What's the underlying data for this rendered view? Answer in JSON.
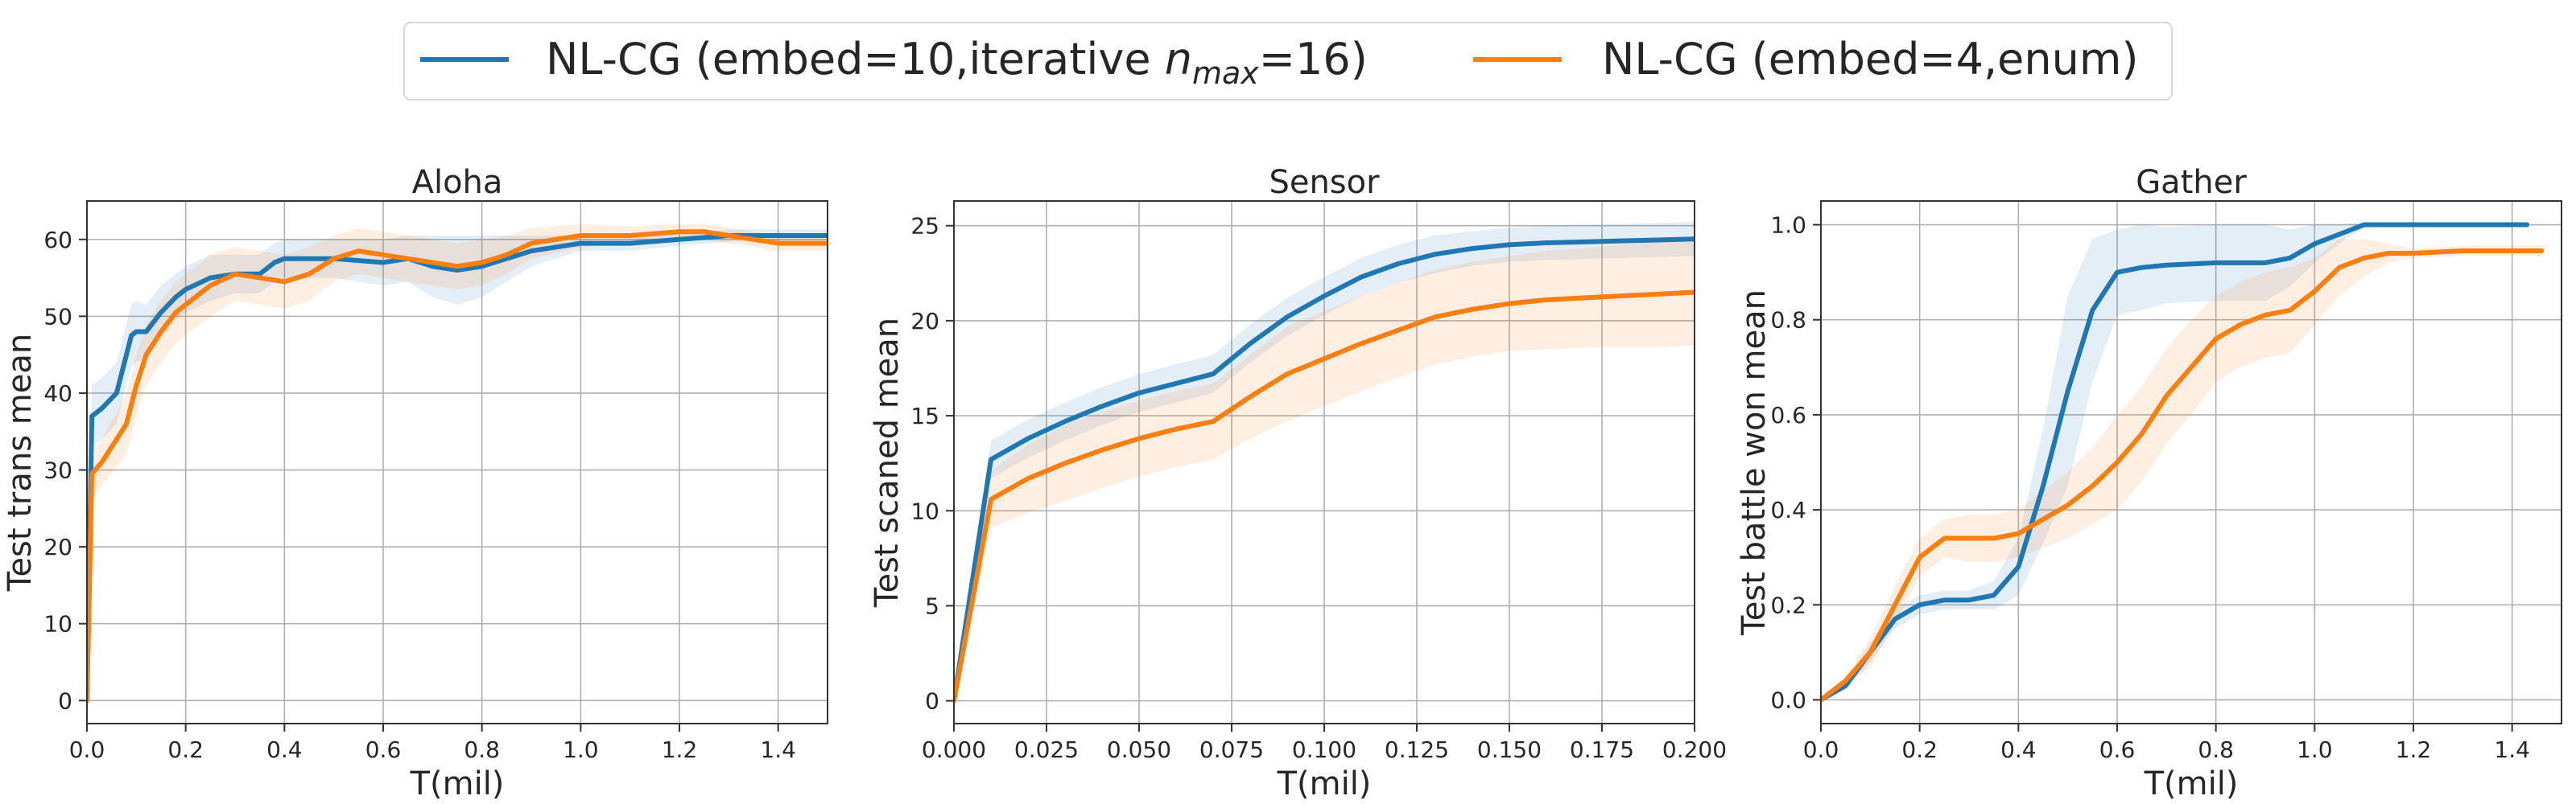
{
  "legend": {
    "position": "top-center",
    "entries": [
      {
        "label_prefix": "NL-CG (embed=10,iterative ",
        "label_sub_base": "n",
        "label_sub": "max",
        "label_suffix": "=16)",
        "color": "#1f77b4"
      },
      {
        "label_prefix": "NL-CG (embed=4,enum)",
        "label_sub_base": "",
        "label_sub": "",
        "label_suffix": "",
        "color": "#ff7f0e"
      }
    ]
  },
  "chart_data": [
    {
      "type": "line",
      "title": "Aloha",
      "xlabel": "T(mil)",
      "ylabel": "Test trans mean",
      "xlim": [
        0,
        1.5
      ],
      "ylim": [
        -3,
        65
      ],
      "xticks": [
        0,
        0.2,
        0.4,
        0.6,
        0.8,
        1.0,
        1.2,
        1.4
      ],
      "xtick_labels": [
        "0.0",
        "0.2",
        "0.4",
        "0.6",
        "0.8",
        "1.0",
        "1.2",
        "1.4"
      ],
      "yticks": [
        0,
        10,
        20,
        30,
        40,
        50,
        60
      ],
      "ytick_labels": [
        "0",
        "10",
        "20",
        "30",
        "40",
        "50",
        "60"
      ],
      "grid": true,
      "series": [
        {
          "color": "#1f77b4",
          "x": [
            0,
            0.01,
            0.03,
            0.06,
            0.08,
            0.09,
            0.1,
            0.12,
            0.15,
            0.18,
            0.2,
            0.25,
            0.3,
            0.35,
            0.38,
            0.4,
            0.45,
            0.5,
            0.6,
            0.65,
            0.7,
            0.75,
            0.8,
            0.85,
            0.9,
            1.0,
            1.1,
            1.2,
            1.3,
            1.4,
            1.5
          ],
          "y": [
            0,
            37,
            38,
            40,
            45,
            47.5,
            48,
            48,
            50.5,
            52.5,
            53.5,
            55,
            55.5,
            55.5,
            57,
            57.5,
            57.5,
            57.5,
            57,
            57.5,
            56.5,
            56,
            56.5,
            57.5,
            58.5,
            59.5,
            59.5,
            60,
            60.5,
            60.5,
            60.5
          ],
          "band_width": [
            0,
            4,
            4,
            4,
            4,
            4,
            4,
            3.5,
            3.5,
            3,
            3,
            3,
            2.5,
            2.5,
            2.5,
            2.5,
            2.5,
            2.5,
            3,
            3,
            4,
            4.5,
            4,
            3,
            2,
            1,
            1,
            0.8,
            0.8,
            0.8,
            0.8
          ]
        },
        {
          "color": "#ff7f0e",
          "x": [
            0,
            0.01,
            0.03,
            0.06,
            0.08,
            0.1,
            0.12,
            0.15,
            0.18,
            0.2,
            0.25,
            0.3,
            0.35,
            0.4,
            0.45,
            0.5,
            0.55,
            0.6,
            0.65,
            0.7,
            0.75,
            0.8,
            0.85,
            0.9,
            1.0,
            1.1,
            1.2,
            1.25,
            1.3,
            1.35,
            1.4,
            1.5
          ],
          "y": [
            0,
            29.5,
            31,
            34,
            36,
            41,
            45,
            48,
            50.5,
            51.5,
            54,
            55.5,
            55,
            54.5,
            55.5,
            57.5,
            58.5,
            58,
            57.5,
            57,
            56.5,
            57,
            58,
            59.5,
            60.5,
            60.5,
            61,
            61,
            60.5,
            60,
            59.5,
            59.5
          ],
          "band_width": [
            0,
            3,
            3,
            3.5,
            4,
            4,
            4,
            4,
            4,
            4,
            4,
            3.5,
            3.5,
            3.5,
            3.5,
            3,
            3,
            3,
            3,
            3,
            3,
            3,
            2.5,
            2,
            1.5,
            1.2,
            1,
            1,
            1,
            1,
            1,
            1
          ]
        }
      ]
    },
    {
      "type": "line",
      "title": "Sensor",
      "xlabel": "T(mil)",
      "ylabel": "Test scaned mean",
      "xlim": [
        0,
        0.2
      ],
      "ylim": [
        -1.2,
        26.3
      ],
      "xticks": [
        0,
        0.025,
        0.05,
        0.075,
        0.1,
        0.125,
        0.15,
        0.175,
        0.2
      ],
      "xtick_labels": [
        "0.000",
        "0.025",
        "0.050",
        "0.075",
        "0.100",
        "0.125",
        "0.150",
        "0.175",
        "0.200"
      ],
      "yticks": [
        0,
        5,
        10,
        15,
        20,
        25
      ],
      "ytick_labels": [
        "0",
        "5",
        "10",
        "15",
        "20",
        "25"
      ],
      "grid": true,
      "series": [
        {
          "color": "#1f77b4",
          "x": [
            0,
            0.01,
            0.02,
            0.03,
            0.04,
            0.05,
            0.06,
            0.07,
            0.08,
            0.09,
            0.1,
            0.11,
            0.12,
            0.13,
            0.14,
            0.15,
            0.16,
            0.17,
            0.18,
            0.19,
            0.2
          ],
          "y": [
            0,
            12.7,
            13.8,
            14.7,
            15.5,
            16.2,
            16.7,
            17.2,
            18.8,
            20.2,
            21.3,
            22.3,
            23.0,
            23.5,
            23.8,
            24.0,
            24.1,
            24.15,
            24.2,
            24.25,
            24.3
          ],
          "band_width": [
            0,
            1,
            1,
            1,
            1,
            1,
            1,
            1,
            1,
            1,
            1,
            1,
            1,
            1,
            0.9,
            0.9,
            0.9,
            0.9,
            0.9,
            0.9,
            0.9
          ]
        },
        {
          "color": "#ff7f0e",
          "x": [
            0,
            0.01,
            0.02,
            0.03,
            0.04,
            0.05,
            0.06,
            0.07,
            0.08,
            0.09,
            0.1,
            0.11,
            0.12,
            0.13,
            0.14,
            0.15,
            0.16,
            0.17,
            0.18,
            0.19,
            0.2
          ],
          "y": [
            0,
            10.6,
            11.7,
            12.5,
            13.2,
            13.8,
            14.3,
            14.7,
            16.0,
            17.2,
            18.0,
            18.8,
            19.5,
            20.2,
            20.6,
            20.9,
            21.1,
            21.2,
            21.3,
            21.4,
            21.5
          ],
          "band_width": [
            0,
            1.5,
            1.8,
            2,
            2,
            2,
            2,
            2,
            2.2,
            2.5,
            2.5,
            2.5,
            2.5,
            2.5,
            2.5,
            2.5,
            2.6,
            2.6,
            2.7,
            2.8,
            2.8
          ]
        }
      ]
    },
    {
      "type": "line",
      "title": "Gather",
      "xlabel": "T(mil)",
      "ylabel": "Test battle won mean",
      "xlim": [
        0,
        1.5
      ],
      "ylim": [
        -0.05,
        1.05
      ],
      "xticks": [
        0,
        0.2,
        0.4,
        0.6,
        0.8,
        1.0,
        1.2,
        1.4
      ],
      "xtick_labels": [
        "0.0",
        "0.2",
        "0.4",
        "0.6",
        "0.8",
        "1.0",
        "1.2",
        "1.4"
      ],
      "yticks": [
        0,
        0.2,
        0.4,
        0.6,
        0.8,
        1.0
      ],
      "ytick_labels": [
        "0.0",
        "0.2",
        "0.4",
        "0.6",
        "0.8",
        "1.0"
      ],
      "grid": true,
      "series": [
        {
          "color": "#1f77b4",
          "x": [
            0,
            0.05,
            0.1,
            0.15,
            0.2,
            0.25,
            0.3,
            0.35,
            0.4,
            0.45,
            0.5,
            0.55,
            0.6,
            0.65,
            0.7,
            0.8,
            0.9,
            0.95,
            1.0,
            1.05,
            1.1,
            1.2,
            1.3,
            1.43
          ],
          "y": [
            0,
            0.03,
            0.1,
            0.17,
            0.2,
            0.21,
            0.21,
            0.22,
            0.28,
            0.45,
            0.65,
            0.82,
            0.9,
            0.91,
            0.915,
            0.92,
            0.92,
            0.93,
            0.96,
            0.98,
            1.0,
            1.0,
            1.0,
            1.0
          ],
          "band_width": [
            0,
            0.01,
            0.02,
            0.02,
            0.02,
            0.02,
            0.02,
            0.03,
            0.06,
            0.12,
            0.2,
            0.15,
            0.09,
            0.09,
            0.08,
            0.08,
            0.08,
            0.06,
            0.04,
            0.02,
            0.005,
            0.005,
            0.005,
            0.005
          ]
        },
        {
          "color": "#ff7f0e",
          "x": [
            0,
            0.05,
            0.1,
            0.15,
            0.2,
            0.25,
            0.3,
            0.35,
            0.4,
            0.45,
            0.5,
            0.55,
            0.6,
            0.65,
            0.7,
            0.75,
            0.8,
            0.85,
            0.9,
            0.95,
            1.0,
            1.05,
            1.1,
            1.15,
            1.2,
            1.3,
            1.4,
            1.46
          ],
          "y": [
            0,
            0.04,
            0.1,
            0.2,
            0.3,
            0.34,
            0.34,
            0.34,
            0.35,
            0.38,
            0.41,
            0.45,
            0.5,
            0.56,
            0.64,
            0.7,
            0.76,
            0.79,
            0.81,
            0.82,
            0.86,
            0.91,
            0.93,
            0.94,
            0.94,
            0.945,
            0.945,
            0.945
          ],
          "band_width": [
            0,
            0.01,
            0.03,
            0.04,
            0.04,
            0.04,
            0.05,
            0.05,
            0.05,
            0.06,
            0.07,
            0.08,
            0.1,
            0.1,
            0.1,
            0.1,
            0.09,
            0.09,
            0.09,
            0.09,
            0.07,
            0.06,
            0.04,
            0.02,
            0.01,
            0.01,
            0.01,
            0.01
          ]
        }
      ]
    }
  ]
}
